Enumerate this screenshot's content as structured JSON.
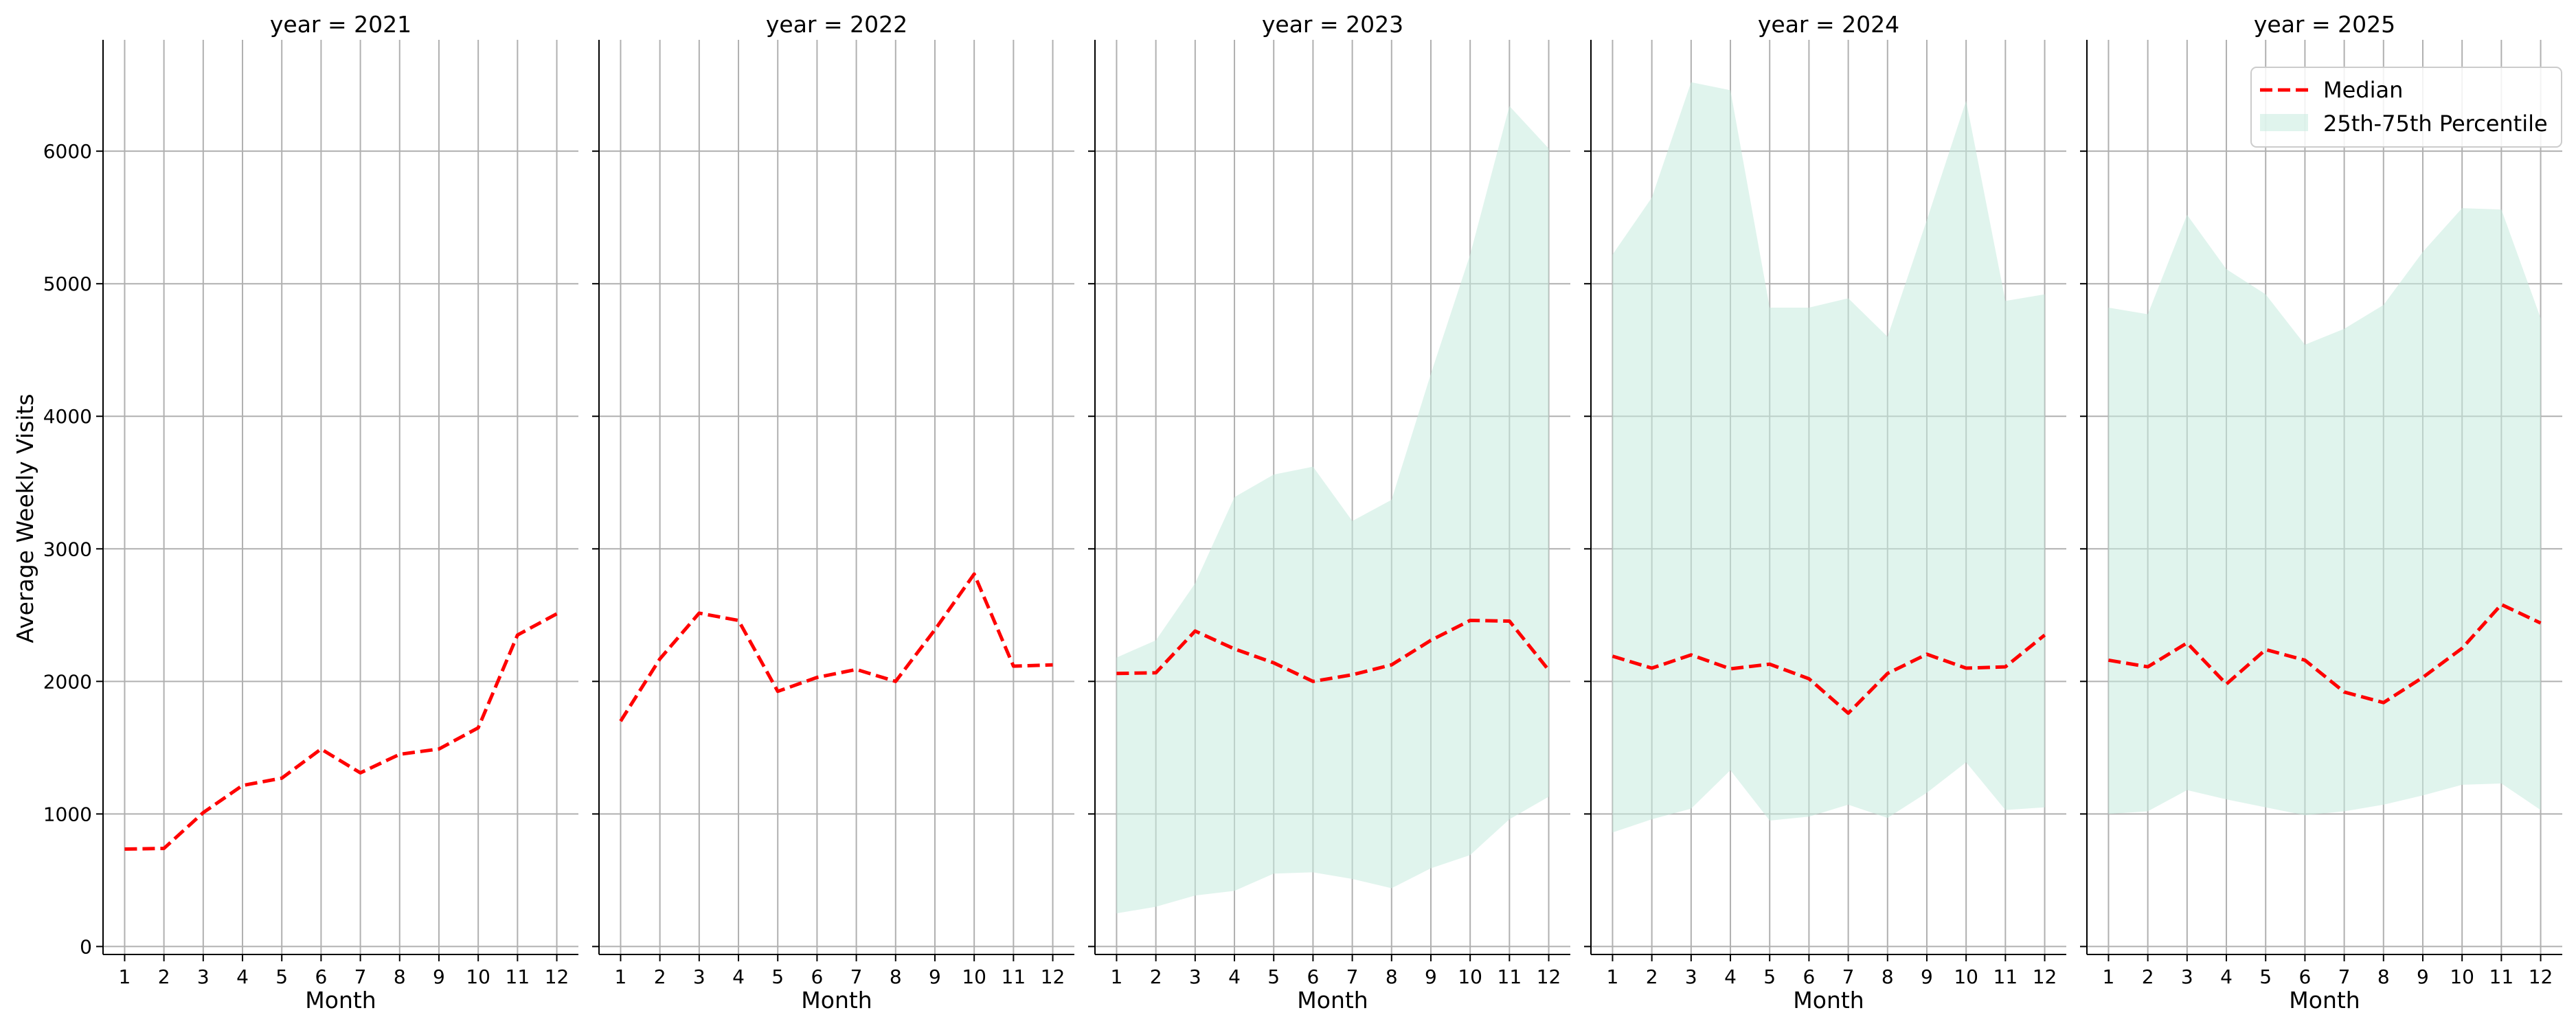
{
  "colors": {
    "median": "#ff0000",
    "band": "#c7ebdf",
    "grid": "#b0b0b0",
    "axis": "#000000"
  },
  "chart_data": {
    "type": "line",
    "ylabel": "Average Weekly Visits",
    "xlabel": "Month",
    "ylim": [
      -60,
      6840
    ],
    "xlim": [
      0.45,
      12.55
    ],
    "x_ticks": [
      "1",
      "2",
      "3",
      "4",
      "5",
      "6",
      "7",
      "8",
      "9",
      "10",
      "11",
      "12"
    ],
    "y_ticks": [
      {
        "value": 0,
        "label": "0"
      },
      {
        "value": 1000,
        "label": "1000"
      },
      {
        "value": 2000,
        "label": "2000"
      },
      {
        "value": 3000,
        "label": "3000"
      },
      {
        "value": 4000,
        "label": "4000"
      },
      {
        "value": 5000,
        "label": "5000"
      },
      {
        "value": 6000,
        "label": "6000"
      }
    ],
    "grid": true,
    "legend": {
      "placement": "top-right",
      "entries": [
        "Median",
        "25th-75th Percentile"
      ]
    },
    "panels": [
      {
        "title": "year = 2021",
        "x": [
          1,
          2,
          3,
          4,
          5,
          6,
          7,
          8,
          9,
          10,
          11,
          12
        ],
        "median": [
          735,
          740,
          1010,
          1215,
          1270,
          1490,
          1310,
          1450,
          1490,
          1650,
          2350,
          2510
        ]
      },
      {
        "title": "year = 2022",
        "x": [
          1,
          2,
          3,
          4,
          5,
          6,
          7,
          8,
          9,
          10,
          11,
          12
        ],
        "median": [
          1700,
          2170,
          2515,
          2460,
          1925,
          2030,
          2090,
          2000,
          2390,
          2810,
          2115,
          2125
        ]
      },
      {
        "title": "year = 2023",
        "x": [
          1,
          2,
          3,
          4,
          5,
          6,
          7,
          8,
          9,
          10,
          11,
          12
        ],
        "median": [
          2060,
          2065,
          2380,
          2245,
          2140,
          2000,
          2050,
          2125,
          2310,
          2460,
          2455,
          2085
        ],
        "p25": [
          250,
          300,
          385,
          420,
          550,
          560,
          510,
          440,
          590,
          690,
          960,
          1130
        ],
        "p75": [
          2180,
          2310,
          2740,
          3390,
          3560,
          3620,
          3210,
          3370,
          4320,
          5220,
          6340,
          6020
        ]
      },
      {
        "title": "year = 2024",
        "x": [
          1,
          2,
          3,
          4,
          5,
          6,
          7,
          8,
          9,
          10,
          11,
          12
        ],
        "median": [
          2190,
          2100,
          2200,
          2095,
          2130,
          2020,
          1760,
          2060,
          2205,
          2100,
          2110,
          2350
        ],
        "p25": [
          860,
          960,
          1040,
          1330,
          950,
          980,
          1070,
          970,
          1160,
          1390,
          1030,
          1050
        ],
        "p75": [
          5220,
          5650,
          6520,
          6460,
          4820,
          4820,
          4890,
          4600,
          5480,
          6380,
          4870,
          4920
        ]
      },
      {
        "title": "year = 2025",
        "x": [
          1,
          2,
          3,
          4,
          5,
          6,
          7,
          8,
          9,
          10,
          11,
          12
        ],
        "median": [
          2160,
          2110,
          2290,
          1980,
          2240,
          2160,
          1920,
          1840,
          2030,
          2250,
          2580,
          2440
        ],
        "p25": [
          1000,
          1020,
          1180,
          1110,
          1050,
          990,
          1020,
          1070,
          1140,
          1220,
          1230,
          1030
        ],
        "p75": [
          4820,
          4770,
          5520,
          5110,
          4920,
          4540,
          4660,
          4840,
          5240,
          5570,
          5560,
          4740
        ]
      }
    ]
  }
}
